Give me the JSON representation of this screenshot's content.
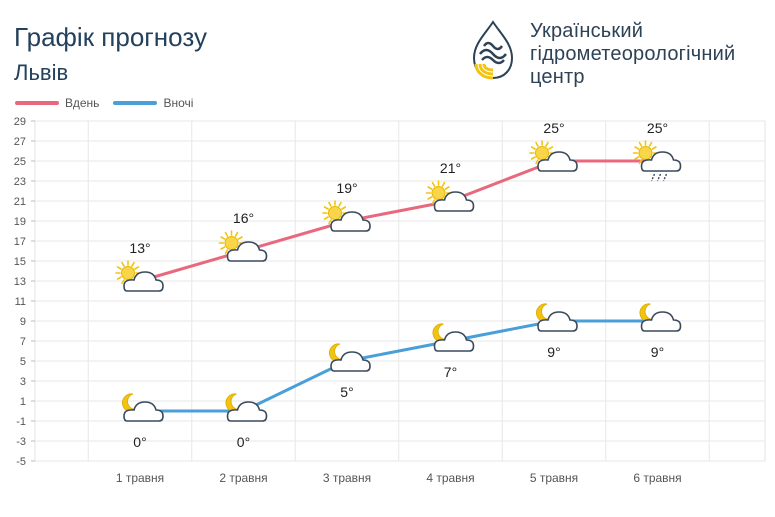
{
  "header": {
    "title": "Графік прогнозу",
    "city": "Львів"
  },
  "brand": {
    "lines": [
      "Український",
      "гідрометеорологічний",
      "центр"
    ],
    "logo_icon": "hydromet-drop-logo",
    "colors": {
      "navy": "#2e4256",
      "yellow": "#f2c30f"
    }
  },
  "legend": [
    {
      "label": "Вдень",
      "color": "#e8697e"
    },
    {
      "label": "Вночі",
      "color": "#4a9fd8"
    }
  ],
  "chart_data": {
    "type": "line",
    "categories": [
      "1 травня",
      "2 травня",
      "3 травня",
      "4 травня",
      "5 травня",
      "6 травня"
    ],
    "series": [
      {
        "name": "Вдень",
        "color": "#e8697e",
        "values": [
          13,
          16,
          19,
          21,
          25,
          25
        ],
        "labels": [
          "13°",
          "16°",
          "19°",
          "21°",
          "25°",
          "25°"
        ],
        "icons": [
          "sun-cloud-icon",
          "sun-cloud-icon",
          "sun-cloud-icon",
          "sun-cloud-icon",
          "sun-cloud-icon",
          "sun-cloud-rain-icon"
        ]
      },
      {
        "name": "Вночі",
        "color": "#4a9fd8",
        "values": [
          0,
          0,
          5,
          7,
          9,
          9
        ],
        "labels": [
          "0°",
          "0°",
          "5°",
          "7°",
          "9°",
          "9°"
        ],
        "icons": [
          "moon-cloud-icon",
          "moon-cloud-icon",
          "moon-cloud-icon",
          "moon-cloud-icon",
          "moon-cloud-icon",
          "moon-cloud-icon"
        ]
      }
    ],
    "yticks": [
      29,
      27,
      25,
      23,
      21,
      19,
      17,
      15,
      13,
      11,
      9,
      7,
      5,
      3,
      1,
      -1,
      -3,
      -5
    ],
    "ylim": [
      -5,
      29
    ],
    "grid": true,
    "legend_position": "top-left"
  }
}
